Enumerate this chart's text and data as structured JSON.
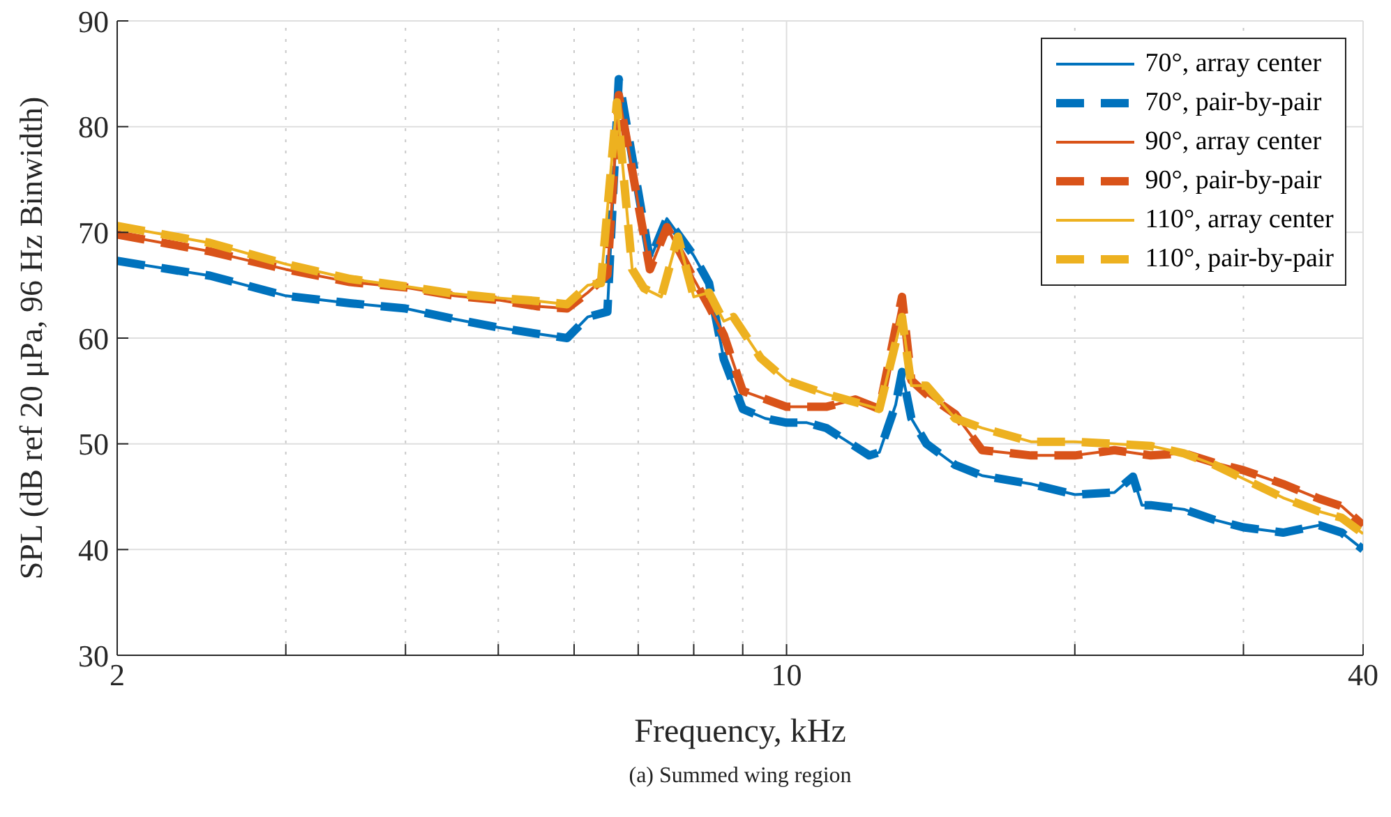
{
  "chart_data": {
    "type": "line",
    "xlabel": "Frequency, kHz",
    "ylabel": "SPL (dB ref 20 μPa, 96 Hz Binwidth)",
    "annotations": [
      "(a) Summed wing region"
    ],
    "log": "x",
    "grid": true,
    "legend": "top right",
    "xlim": [
      2,
      40
    ],
    "ylim": [
      30,
      90
    ],
    "xticks": [
      2,
      {
        "value": 3,
        "label": null
      },
      {
        "value": 4,
        "label": null
      },
      {
        "value": 5,
        "label": null
      },
      {
        "value": 6,
        "label": null
      },
      {
        "value": 7,
        "label": null
      },
      {
        "value": 8,
        "label": null
      },
      {
        "value": 9,
        "label": null
      },
      10,
      {
        "value": 20,
        "label": null
      },
      {
        "value": 30,
        "label": null
      },
      40
    ],
    "yticks": [
      30,
      40,
      50,
      60,
      70,
      80,
      90
    ],
    "series": [
      {
        "name": "70°, array center",
        "color": "#0072bd",
        "line_style": "solid",
        "x": [
          2,
          2.5,
          3,
          3.5,
          4,
          4.5,
          5,
          5.5,
          5.9,
          6.2,
          6.5,
          6.68,
          7.2,
          7.5,
          8,
          8.3,
          8.6,
          9,
          9.5,
          10,
          10.5,
          11,
          12.2,
          12.5,
          13,
          13.2,
          13.5,
          14,
          15,
          16,
          18,
          20,
          22,
          23,
          23.5,
          24,
          26,
          28,
          30,
          33,
          36,
          38,
          40
        ],
        "values": [
          67.3,
          65.9,
          64,
          63.3,
          62.8,
          61.8,
          61,
          60.4,
          60,
          62,
          62.5,
          84.5,
          67.4,
          71.3,
          67.8,
          65.2,
          58,
          53.3,
          52.4,
          52,
          52,
          51.5,
          48.9,
          49.2,
          53.7,
          56.8,
          52.4,
          50,
          48,
          47,
          46.2,
          45.2,
          45.4,
          46.9,
          44.2,
          44.2,
          43.8,
          42.8,
          42.1,
          41.6,
          42.3,
          41.6,
          40
        ]
      },
      {
        "name": "70°, pair-by-pair",
        "color": "#0072bd",
        "line_style": "dashed",
        "x": [
          2,
          2.5,
          3,
          3.5,
          4,
          4.5,
          5,
          5.5,
          5.9,
          6.2,
          6.5,
          6.68,
          7.2,
          7.5,
          8,
          8.3,
          8.6,
          9,
          9.5,
          10,
          10.5,
          11,
          12.2,
          12.5,
          13,
          13.2,
          13.5,
          14,
          15,
          16,
          18,
          20,
          22,
          23,
          23.5,
          24,
          26,
          28,
          30,
          33,
          36,
          38,
          40
        ],
        "values": [
          67.3,
          65.9,
          64,
          63.3,
          62.8,
          61.8,
          61,
          60.4,
          60,
          62,
          62.5,
          84.5,
          67.4,
          71.3,
          67.8,
          65.2,
          58,
          53.3,
          52.4,
          52,
          52,
          51.5,
          48.9,
          49.2,
          53.7,
          56.8,
          52.4,
          50,
          48,
          47,
          46.2,
          45.2,
          45.4,
          46.9,
          44.2,
          44.2,
          43.8,
          42.8,
          42.1,
          41.6,
          42.3,
          41.6,
          40
        ]
      },
      {
        "name": "90°, array center",
        "color": "#d95319",
        "line_style": "solid",
        "x": [
          2,
          2.5,
          3,
          3.5,
          4,
          4.5,
          5,
          5.5,
          5.9,
          6.2,
          6.5,
          6.68,
          7.2,
          7.5,
          8,
          8.3,
          8.6,
          9,
          10,
          11,
          11.8,
          12.5,
          13.2,
          13.5,
          14,
          15,
          16,
          18,
          20,
          22,
          24,
          26,
          28,
          30,
          33,
          36,
          38,
          40
        ],
        "values": [
          69.8,
          68.2,
          66.5,
          65.3,
          64.8,
          64,
          63.6,
          63,
          62.8,
          64.3,
          66,
          83,
          66.5,
          70.5,
          65.6,
          63,
          60.3,
          55,
          53.5,
          53.5,
          54.2,
          53.3,
          63.9,
          56,
          54.7,
          52.8,
          49.4,
          48.9,
          48.9,
          49.4,
          48.9,
          49.1,
          48.2,
          47.5,
          46.2,
          44.8,
          44.1,
          42.3
        ]
      },
      {
        "name": "90°, pair-by-pair",
        "color": "#d95319",
        "line_style": "dashed",
        "x": [
          2,
          2.5,
          3,
          3.5,
          4,
          4.5,
          5,
          5.5,
          5.9,
          6.2,
          6.5,
          6.68,
          7.2,
          7.5,
          8,
          8.3,
          8.6,
          9,
          10,
          11,
          11.8,
          12.5,
          13.2,
          13.5,
          14,
          15,
          16,
          18,
          20,
          22,
          24,
          26,
          28,
          30,
          33,
          36,
          38,
          40
        ],
        "values": [
          69.8,
          68.2,
          66.5,
          65.3,
          64.8,
          64,
          63.6,
          63,
          62.8,
          64.3,
          66,
          83,
          66.5,
          70.5,
          65.6,
          63,
          60.3,
          55,
          53.5,
          53.5,
          54.2,
          53.3,
          63.9,
          56,
          54.7,
          52.8,
          49.4,
          48.9,
          48.9,
          49.4,
          48.9,
          49.1,
          48.2,
          47.5,
          46.2,
          44.8,
          44.1,
          42.3
        ]
      },
      {
        "name": "110°, array center",
        "color": "#edb120",
        "line_style": "solid",
        "x": [
          2,
          2.5,
          3,
          3.5,
          4,
          4.5,
          5,
          5.5,
          5.9,
          6.2,
          6.4,
          6.65,
          6.9,
          7.1,
          7.4,
          7.7,
          8,
          8.3,
          8.6,
          8.8,
          9.4,
          10,
          11,
          12.5,
          13.2,
          13.5,
          14,
          15,
          16,
          18,
          20,
          22,
          24,
          26,
          28,
          30,
          33,
          36,
          38,
          40
        ],
        "values": [
          70.6,
          69,
          67,
          65.6,
          64.9,
          64.2,
          63.8,
          63.5,
          63.2,
          65,
          65.2,
          82.3,
          66.5,
          64.7,
          63.9,
          69.6,
          63.9,
          64.3,
          61.6,
          62,
          58.1,
          56,
          54.7,
          53.3,
          62,
          55.5,
          55.5,
          52.4,
          51.5,
          50.2,
          50.2,
          50,
          49.8,
          49.1,
          48,
          46.7,
          44.9,
          43.6,
          43,
          41.5
        ]
      },
      {
        "name": "110°, pair-by-pair",
        "color": "#edb120",
        "line_style": "dashed",
        "x": [
          2,
          2.5,
          3,
          3.5,
          4,
          4.5,
          5,
          5.5,
          5.9,
          6.2,
          6.4,
          6.65,
          6.9,
          7.1,
          7.4,
          7.7,
          8,
          8.3,
          8.6,
          8.8,
          9.4,
          10,
          11,
          12.5,
          13.2,
          13.5,
          14,
          15,
          16,
          18,
          20,
          22,
          24,
          26,
          28,
          30,
          33,
          36,
          38,
          40
        ],
        "values": [
          70.6,
          69,
          67,
          65.6,
          64.9,
          64.2,
          63.8,
          63.5,
          63.2,
          65,
          65.2,
          82.3,
          66.5,
          64.7,
          63.9,
          69.6,
          63.9,
          64.3,
          61.6,
          62,
          58.1,
          56,
          54.7,
          53.3,
          62,
          55.5,
          55.5,
          52.4,
          51.5,
          50.2,
          50.2,
          50,
          49.8,
          49.1,
          48,
          46.7,
          44.9,
          43.6,
          43,
          41.5
        ]
      }
    ]
  }
}
